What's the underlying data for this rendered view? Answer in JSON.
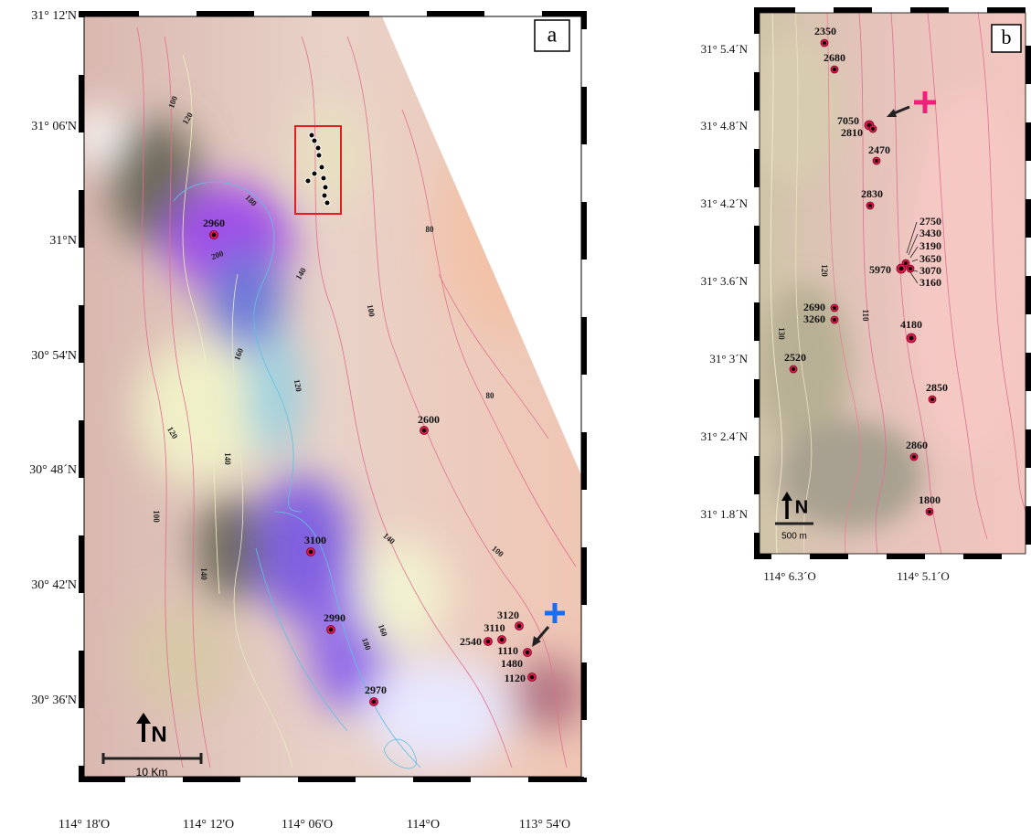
{
  "panel_a": {
    "label": "a",
    "lat_labels": [
      "31° 12'N",
      "31° 06'N",
      "31°N",
      "30° 54'N",
      "30° 48´N",
      "30° 42'N",
      "30° 36'N"
    ],
    "lon_labels": [
      "114° 18'O",
      "114° 12'O",
      "114° 06'O",
      "114°O",
      "113° 54'O"
    ],
    "contour_labels": [
      "100",
      "120",
      "180",
      "200",
      "140",
      "80",
      "100",
      "160",
      "120",
      "80",
      "120",
      "140",
      "100",
      "140",
      "100",
      "160",
      "180",
      "140"
    ],
    "sites": [
      "2960",
      "2600",
      "3100",
      "2990",
      "2970",
      "3120",
      "3110",
      "2540",
      "1110",
      "1480",
      "1120"
    ],
    "scale_label": "10 Km",
    "north": "N"
  },
  "panel_b": {
    "label": "b",
    "lat_labels": [
      "31° 5.4´N",
      "31° 4.8´N",
      "31° 4.2´N",
      "31° 3.6´N",
      "31° 3´N",
      "31° 2.4´N",
      "31° 1.8´N"
    ],
    "lon_labels": [
      "114° 6.3´O",
      "114° 5.1´O"
    ],
    "contour_labels": [
      "120",
      "110",
      "130"
    ],
    "sites": [
      "2350",
      "2680",
      "7050",
      "2810",
      "2470",
      "2830",
      "2750",
      "3430",
      "3190",
      "3650",
      "3070",
      "3160",
      "5970",
      "2690",
      "3260",
      "4180",
      "2520",
      "2850",
      "2860",
      "1800"
    ],
    "scale_label": "500 m",
    "north": "N"
  }
}
